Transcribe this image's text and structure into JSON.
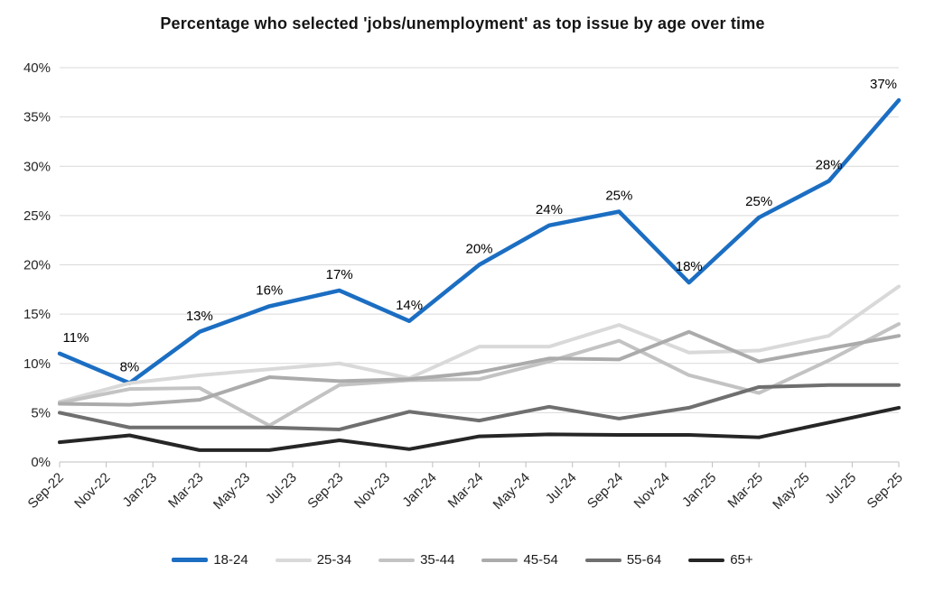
{
  "chart_data": {
    "type": "line",
    "title": "Percentage who selected 'jobs/unemployment' as top issue by age over time",
    "ylim": [
      0,
      40
    ],
    "y_tick_labels": [
      "0%",
      "5%",
      "10%",
      "15%",
      "20%",
      "25%",
      "30%",
      "35%",
      "40%"
    ],
    "x_tick_labels": [
      "Sep-22",
      "Nov-22",
      "Jan-23",
      "Mar-23",
      "May-23",
      "Jul-23",
      "Sep-23",
      "Nov-23",
      "Jan-24",
      "Mar-24",
      "May-24",
      "Jul-24",
      "Sep-24",
      "Nov-24",
      "Jan-25",
      "Mar-25",
      "May-25",
      "Jul-25",
      "Sep-25"
    ],
    "note_points_spacing": "data points are quarterly (every 1.5 x-axis ticks), 13 points per series",
    "grid": "horizontal",
    "legend_position": "bottom",
    "series": [
      {
        "name": "18-24",
        "color": "#1b6ec2",
        "values": [
          11,
          8,
          13.2,
          15.8,
          17.4,
          14.3,
          20,
          24,
          25.4,
          18.2,
          24.8,
          28.5,
          36.7
        ],
        "point_labels": [
          "11%",
          "8%",
          "13%",
          "16%",
          "17%",
          "14%",
          "20%",
          "24%",
          "25%",
          "18%",
          "25%",
          "28%",
          "37%"
        ]
      },
      {
        "name": "25-34",
        "color": "#d9d9d9",
        "values": [
          6.1,
          8.0,
          8.8,
          9.4,
          10.0,
          8.5,
          11.7,
          11.7,
          13.9,
          11.1,
          11.3,
          12.8,
          17.8
        ],
        "point_labels": []
      },
      {
        "name": "35-44",
        "color": "#c3c3c3",
        "values": [
          6.0,
          7.4,
          7.5,
          3.7,
          7.8,
          8.3,
          8.4,
          10.2,
          12.3,
          8.8,
          7.0,
          10.3,
          14.0
        ],
        "point_labels": []
      },
      {
        "name": "45-54",
        "color": "#ababab",
        "values": [
          5.9,
          5.8,
          6.3,
          8.6,
          8.2,
          8.4,
          9.1,
          10.5,
          10.4,
          13.2,
          10.2,
          11.5,
          12.8
        ],
        "point_labels": []
      },
      {
        "name": "55-64",
        "color": "#6f6f6f",
        "values": [
          5.0,
          3.5,
          3.5,
          3.5,
          3.3,
          5.1,
          4.2,
          5.6,
          4.4,
          5.5,
          7.6,
          7.8,
          7.8
        ],
        "point_labels": []
      },
      {
        "name": "65+",
        "color": "#262626",
        "values": [
          2.0,
          2.7,
          1.2,
          1.2,
          2.2,
          1.3,
          2.6,
          2.8,
          2.75,
          2.75,
          2.5,
          4.0,
          5.5
        ],
        "point_labels": []
      }
    ]
  }
}
